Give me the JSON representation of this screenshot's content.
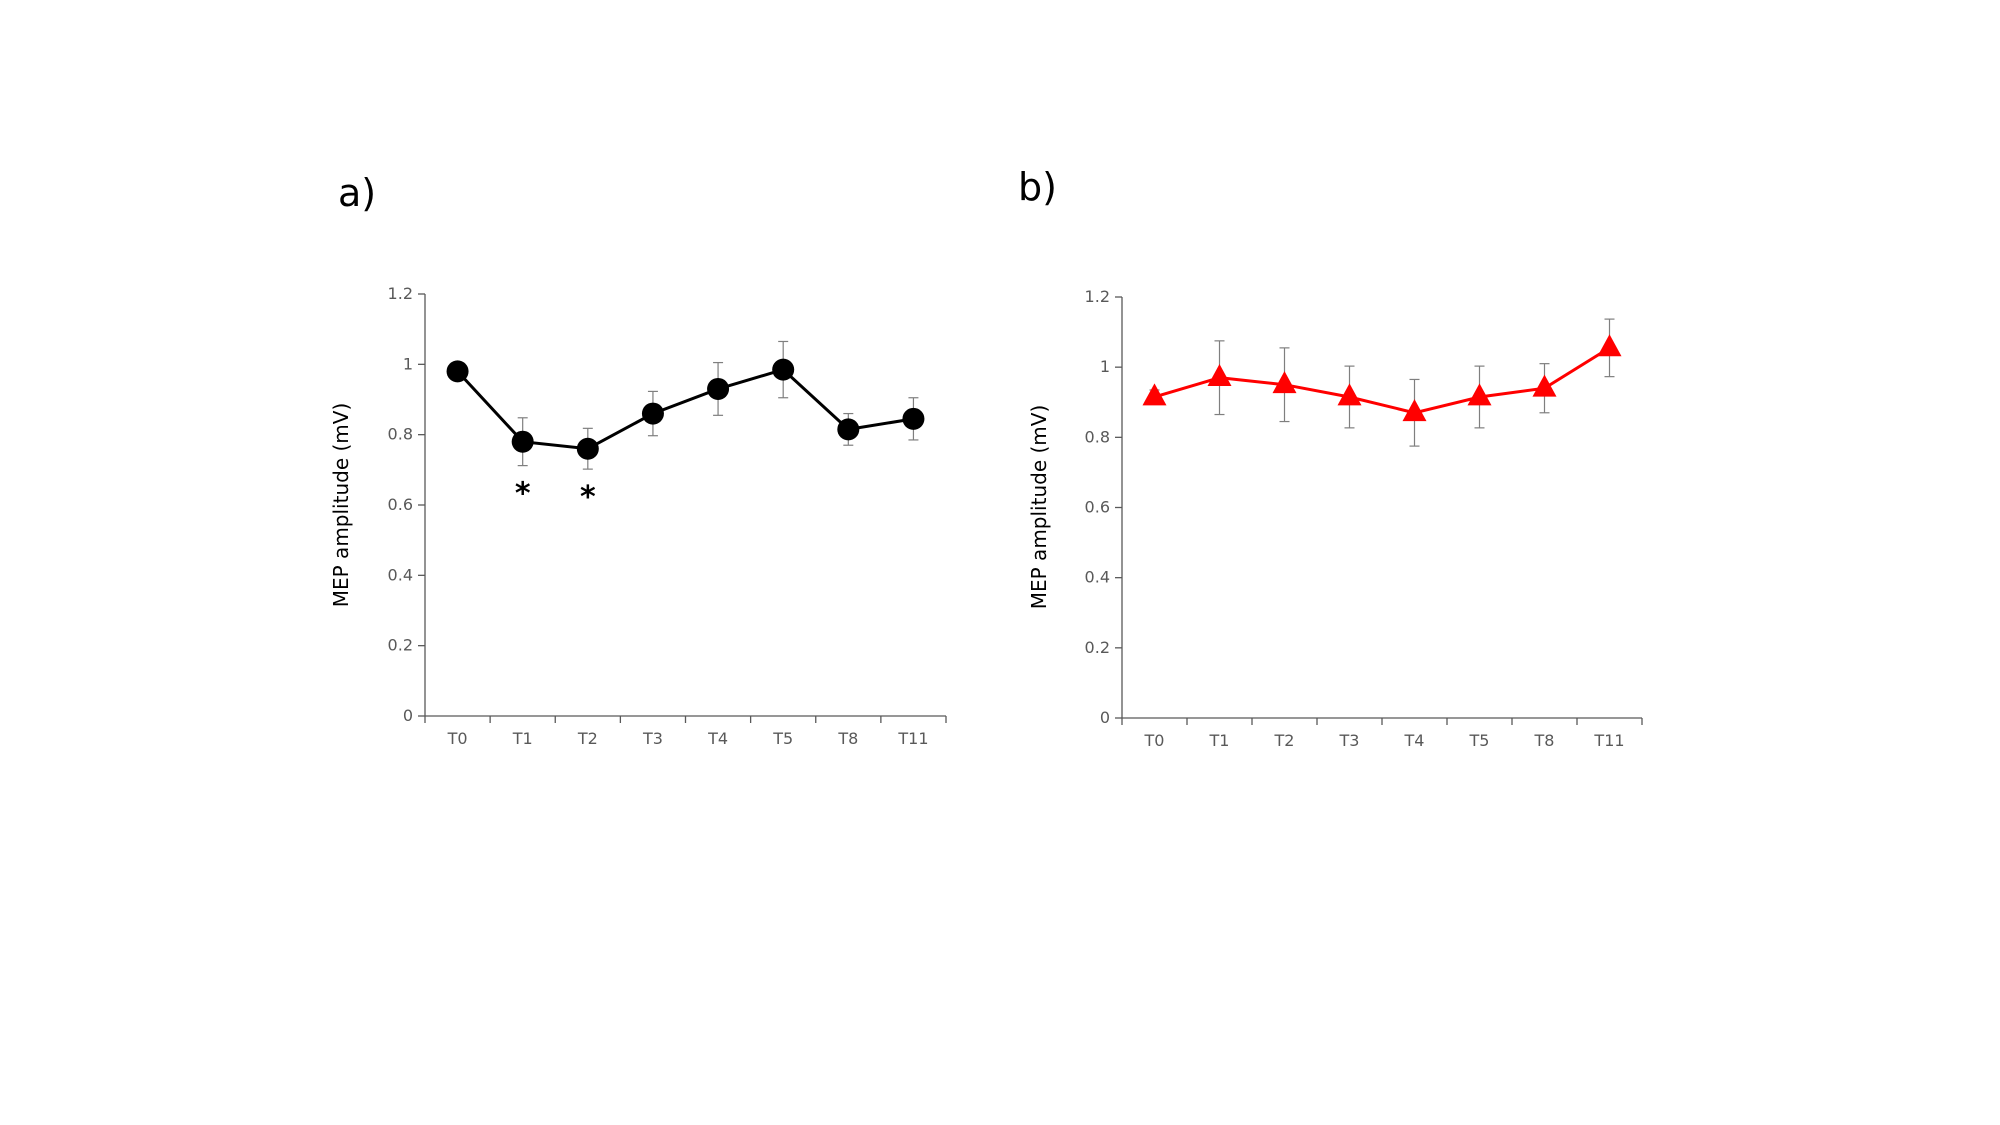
{
  "chart_data": [
    {
      "type": "line",
      "panel_label": "a)",
      "categories": [
        "T0",
        "T1",
        "T2",
        "T3",
        "T4",
        "T5",
        "T8",
        "T11"
      ],
      "series": [
        {
          "values": [
            0.98,
            0.78,
            0.76,
            0.86,
            0.93,
            0.985,
            0.815,
            0.845
          ],
          "error": [
            0.0,
            0.068,
            0.058,
            0.063,
            0.075,
            0.08,
            0.045,
            0.06
          ],
          "marker": "circle",
          "color": "#000000"
        }
      ],
      "annotations": [
        {
          "text": "*",
          "category": "T1"
        },
        {
          "text": "*",
          "category": "T2"
        }
      ],
      "yticks": [
        "0",
        "0.2",
        "0.4",
        "0.6",
        "0.8",
        "1",
        "1.2"
      ],
      "ylabel": "MEP amplitude (mV)",
      "xlabel": "",
      "ylim": [
        0,
        1.2
      ],
      "grid": false
    },
    {
      "type": "line",
      "panel_label": "b)",
      "categories": [
        "T0",
        "T1",
        "T2",
        "T3",
        "T4",
        "T5",
        "T8",
        "T11"
      ],
      "series": [
        {
          "values": [
            0.915,
            0.97,
            0.95,
            0.915,
            0.87,
            0.915,
            0.94,
            1.055
          ],
          "error": [
            0.02,
            0.105,
            0.105,
            0.088,
            0.095,
            0.088,
            0.07,
            0.082
          ],
          "marker": "triangle",
          "color": "#ff0000"
        }
      ],
      "annotations": [],
      "yticks": [
        "0",
        "0.2",
        "0.4",
        "0.6",
        "0.8",
        "1",
        "1.2"
      ],
      "ylabel": "MEP amplitude (mV)",
      "xlabel": "",
      "ylim": [
        0,
        1.2
      ],
      "grid": false
    }
  ]
}
